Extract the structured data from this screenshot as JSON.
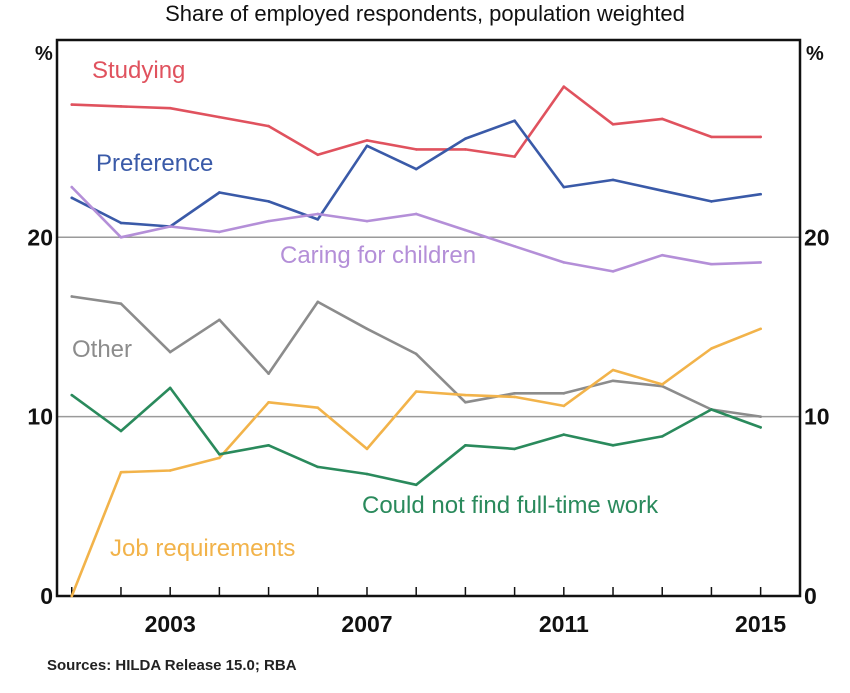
{
  "chart_data": {
    "type": "line",
    "title": "Share of employed respondents, population weighted",
    "subtitle": "",
    "source": "Sources: HILDA Release 15.0; RBA",
    "y_unit_left": "%",
    "y_unit_right": "%",
    "ylim": [
      0,
      31
    ],
    "y_ticks": [
      0,
      10,
      20
    ],
    "y_tick_labels": [
      "0",
      "10",
      "20"
    ],
    "xlim": [
      2000.7,
      2015.8
    ],
    "x_ticks": [
      2003,
      2007,
      2011,
      2015
    ],
    "x_tick_labels": [
      "2003",
      "2007",
      "2011",
      "2015"
    ],
    "x_minor_ticks": [
      2001,
      2002,
      2003,
      2004,
      2005,
      2006,
      2007,
      2008,
      2009,
      2010,
      2011,
      2012,
      2013,
      2014,
      2015
    ],
    "x": [
      2001,
      2002,
      2003,
      2004,
      2005,
      2006,
      2007,
      2008,
      2009,
      2010,
      2011,
      2012,
      2013,
      2014,
      2015
    ],
    "grid_y": [
      10,
      20
    ],
    "series": [
      {
        "name": "Studying",
        "color": "#e0525e",
        "values": [
          27.4,
          27.3,
          27.2,
          26.7,
          26.2,
          24.6,
          25.4,
          24.9,
          24.9,
          24.5,
          28.4,
          26.3,
          26.6,
          25.6,
          25.6
        ]
      },
      {
        "name": "Preference",
        "color": "#3a5aa8",
        "values": [
          22.2,
          20.8,
          20.6,
          22.5,
          22.0,
          21.0,
          25.1,
          23.8,
          25.5,
          26.5,
          22.8,
          23.2,
          22.6,
          22.0,
          22.4
        ]
      },
      {
        "name": "Caring for children",
        "color": "#b48fd8",
        "values": [
          22.8,
          20.0,
          20.6,
          20.3,
          20.9,
          21.3,
          20.9,
          21.3,
          20.4,
          19.5,
          18.6,
          18.1,
          19.0,
          18.5,
          18.6
        ]
      },
      {
        "name": "Other",
        "color": "#8c8c8c",
        "values": [
          16.7,
          16.3,
          13.6,
          15.4,
          12.4,
          16.4,
          14.9,
          13.5,
          10.8,
          11.3,
          11.3,
          12.0,
          11.7,
          10.4,
          10.0
        ]
      },
      {
        "name": "Job requirements",
        "color": "#f2b34a",
        "values": [
          0.0,
          6.9,
          7.0,
          7.7,
          10.8,
          10.5,
          8.2,
          11.4,
          11.2,
          11.1,
          10.6,
          12.6,
          11.8,
          13.8,
          14.9
        ]
      },
      {
        "name": "Could not find full-time work",
        "color": "#2a8a5c",
        "values": [
          11.2,
          9.2,
          11.6,
          7.9,
          8.4,
          7.2,
          6.8,
          6.2,
          8.4,
          8.2,
          9.0,
          8.4,
          8.9,
          10.4,
          9.4
        ]
      }
    ]
  }
}
